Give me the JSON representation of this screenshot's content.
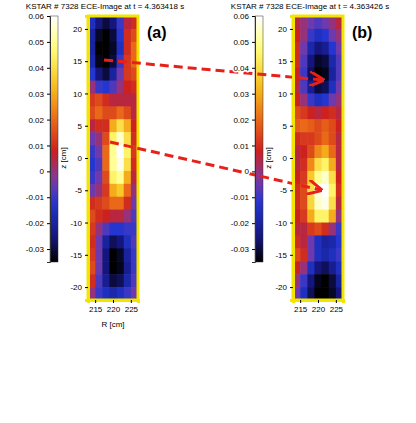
{
  "chart_data": [
    {
      "type": "heatmap",
      "title": "KSTAR # 7328 ECE-Image at t = 4.363418 s",
      "panel_label": "(a)",
      "x_label": "R [cm]",
      "y_label": "z [cm]",
      "x": [
        214,
        216,
        218,
        220,
        222,
        224,
        226
      ],
      "y": [
        21,
        19,
        17,
        15,
        13,
        11,
        9,
        7,
        5,
        3,
        1,
        -1,
        -3,
        -5,
        -7,
        -9,
        -11,
        -13,
        -15,
        -17,
        -19,
        -21
      ],
      "values": [
        [
          -0.015,
          -0.025,
          -0.03,
          -0.025,
          -0.01,
          0.005,
          0.01
        ],
        [
          -0.02,
          -0.032,
          -0.035,
          -0.03,
          -0.012,
          0.01,
          0.015
        ],
        [
          -0.02,
          -0.035,
          -0.035,
          -0.032,
          -0.015,
          0.01,
          0.02
        ],
        [
          -0.018,
          -0.033,
          -0.035,
          -0.03,
          -0.01,
          0.012,
          0.02
        ],
        [
          -0.012,
          -0.025,
          -0.03,
          -0.02,
          -0.005,
          0.012,
          0.015
        ],
        [
          0,
          -0.01,
          -0.012,
          -0.008,
          0,
          0.008,
          0.01
        ],
        [
          0.012,
          0.015,
          0.01,
          0.005,
          0.005,
          0.005,
          0.005
        ],
        [
          0.015,
          0.02,
          0.015,
          0.015,
          0.02,
          0.015,
          0.005
        ],
        [
          0.005,
          0.01,
          0.01,
          0.03,
          0.04,
          0.03,
          0.008
        ],
        [
          -0.005,
          0,
          0.015,
          0.045,
          0.055,
          0.04,
          0.01
        ],
        [
          -0.01,
          -0.005,
          0.02,
          0.05,
          0.06,
          0.045,
          0.012
        ],
        [
          -0.012,
          -0.008,
          0.02,
          0.05,
          0.058,
          0.04,
          0.01
        ],
        [
          -0.01,
          -0.005,
          0.015,
          0.045,
          0.05,
          0.03,
          0.005
        ],
        [
          -0.005,
          0,
          0.012,
          0.03,
          0.035,
          0.02,
          0
        ],
        [
          0.01,
          0.012,
          0.015,
          0.02,
          0.02,
          0.01,
          -0.005
        ],
        [
          0.015,
          0.01,
          0.008,
          0.005,
          0.005,
          0,
          -0.008
        ],
        [
          0.012,
          0,
          -0.008,
          -0.012,
          -0.012,
          -0.01,
          -0.01
        ],
        [
          0.01,
          -0.005,
          -0.02,
          -0.028,
          -0.025,
          -0.015,
          -0.008
        ],
        [
          0.012,
          -0.005,
          -0.025,
          -0.035,
          -0.032,
          -0.02,
          -0.01
        ],
        [
          0.015,
          -0.005,
          -0.025,
          -0.035,
          -0.033,
          -0.022,
          -0.01
        ],
        [
          0.01,
          -0.008,
          -0.022,
          -0.03,
          -0.028,
          -0.018,
          -0.008
        ],
        [
          0,
          -0.01,
          -0.015,
          -0.018,
          -0.015,
          -0.01,
          -0.005
        ]
      ],
      "xlim": [
        213,
        227
      ],
      "ylim": [
        -22,
        22
      ],
      "xticks": [
        215,
        220,
        225
      ],
      "yticks": [
        20,
        15,
        10,
        5,
        0,
        -5,
        -10,
        -15,
        -20
      ],
      "colorbar_lim": [
        -0.035,
        0.06
      ],
      "colorbar_ticks": [
        0.06,
        0.05,
        0.04,
        0.03,
        0.02,
        0.01,
        0,
        -0.01,
        -0.02,
        -0.03
      ]
    },
    {
      "type": "heatmap",
      "title": "KSTAR # 7328 ECE-Image at t = 4.363426 s",
      "panel_label": "(b)",
      "y_label": "z [cm]",
      "x": [
        214,
        216,
        218,
        220,
        222,
        224,
        226
      ],
      "y": [
        21,
        19,
        17,
        15,
        13,
        11,
        9,
        7,
        5,
        3,
        1,
        -1,
        -3,
        -5,
        -7,
        -9,
        -11,
        -13,
        -15,
        -17,
        -19,
        -21
      ],
      "values": [
        [
          0.005,
          0,
          -0.005,
          -0.008,
          -0.005,
          0,
          0.005
        ],
        [
          0.008,
          0,
          -0.01,
          -0.015,
          -0.012,
          -0.005,
          0
        ],
        [
          0.01,
          -0.005,
          -0.018,
          -0.025,
          -0.022,
          -0.012,
          -0.005
        ],
        [
          0.01,
          -0.008,
          -0.025,
          -0.032,
          -0.03,
          -0.018,
          -0.008
        ],
        [
          0.008,
          -0.01,
          -0.028,
          -0.035,
          -0.033,
          -0.02,
          -0.008
        ],
        [
          0.005,
          -0.008,
          -0.022,
          -0.03,
          -0.028,
          -0.015,
          -0.005
        ],
        [
          0.008,
          0,
          -0.01,
          -0.015,
          -0.012,
          -0.005,
          0
        ],
        [
          0.015,
          0.012,
          0.008,
          0.005,
          0.008,
          0.01,
          0.005
        ],
        [
          0.018,
          0.02,
          0.018,
          0.015,
          0.018,
          0.015,
          0.008
        ],
        [
          0.01,
          0.012,
          0.012,
          0.015,
          0.02,
          0.015,
          0.005
        ],
        [
          0.005,
          0.008,
          0.015,
          0.025,
          0.03,
          0.02,
          0.005
        ],
        [
          0.005,
          0.01,
          0.025,
          0.04,
          0.045,
          0.03,
          0.005
        ],
        [
          0.008,
          0.012,
          0.035,
          0.05,
          0.055,
          0.04,
          0.008
        ],
        [
          0.01,
          0.015,
          0.04,
          0.058,
          0.06,
          0.045,
          0.01
        ],
        [
          0.01,
          0.015,
          0.038,
          0.055,
          0.058,
          0.04,
          0.005
        ],
        [
          0.008,
          0.012,
          0.03,
          0.045,
          0.045,
          0.03,
          0
        ],
        [
          0.005,
          0.005,
          0.012,
          0.015,
          0.01,
          0,
          -0.01
        ],
        [
          0.01,
          0.005,
          -0.005,
          -0.015,
          -0.02,
          -0.018,
          -0.012
        ],
        [
          0.015,
          0.01,
          -0.005,
          -0.015,
          -0.018,
          -0.015,
          -0.01
        ],
        [
          0.008,
          0,
          -0.015,
          -0.025,
          -0.028,
          -0.022,
          -0.015
        ],
        [
          0,
          -0.01,
          -0.025,
          -0.033,
          -0.035,
          -0.03,
          -0.02
        ],
        [
          -0.005,
          -0.015,
          -0.028,
          -0.035,
          -0.035,
          -0.032,
          -0.025
        ]
      ],
      "xlim": [
        213,
        227
      ],
      "ylim": [
        -22,
        22
      ],
      "xticks": [
        215,
        220,
        225
      ],
      "yticks": [
        20,
        15,
        10,
        5,
        0,
        -5,
        -10,
        -15,
        -20
      ],
      "colorbar_lim": [
        -0.035,
        0.06
      ],
      "colorbar_ticks": [
        0.06,
        0.05,
        0.04,
        0.03,
        0.02,
        0.01,
        0,
        -0.01,
        -0.02,
        -0.03
      ]
    }
  ]
}
